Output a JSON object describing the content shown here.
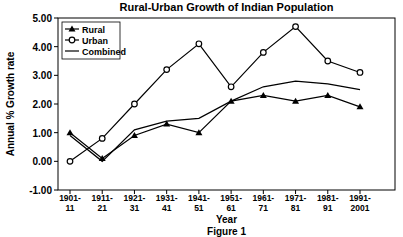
{
  "chart_data": {
    "type": "line",
    "title": "Rural-Urban Growth of Indian Population",
    "x_label": "Year",
    "y_label": "Annual % Growth rate",
    "caption": "Figure 1",
    "categories": [
      "1901-11",
      "1911-21",
      "1921-31",
      "1931-41",
      "1941-51",
      "1951-61",
      "1961-71",
      "1971-81",
      "1981-91",
      "1991-2001"
    ],
    "series": [
      {
        "name": "Rural",
        "color": "#000000",
        "marker": "triangle",
        "values": [
          1.0,
          0.1,
          0.9,
          1.3,
          1.0,
          2.1,
          2.3,
          2.1,
          2.3,
          1.9
        ]
      },
      {
        "name": "Urban",
        "color": "#000000",
        "marker": "circle",
        "values": [
          0.0,
          0.8,
          2.0,
          3.2,
          4.1,
          2.6,
          3.8,
          4.7,
          3.5,
          3.1
        ]
      },
      {
        "name": "Combined",
        "color": "#000000",
        "marker": "none",
        "values": [
          0.9,
          0.0,
          1.1,
          1.4,
          1.5,
          2.1,
          2.6,
          2.8,
          2.7,
          2.5
        ]
      }
    ],
    "ylim": [
      -1,
      5
    ],
    "yticks": [
      {
        "value": -1,
        "label": "-1.00"
      },
      {
        "value": 0,
        "label": "0.00"
      },
      {
        "value": 1,
        "label": "1.00"
      },
      {
        "value": 2,
        "label": "2.00"
      },
      {
        "value": 3,
        "label": "3.00"
      },
      {
        "value": 4,
        "label": "4.00"
      },
      {
        "value": 5,
        "label": "5.00"
      }
    ],
    "grid": false,
    "legend": "top-left"
  }
}
